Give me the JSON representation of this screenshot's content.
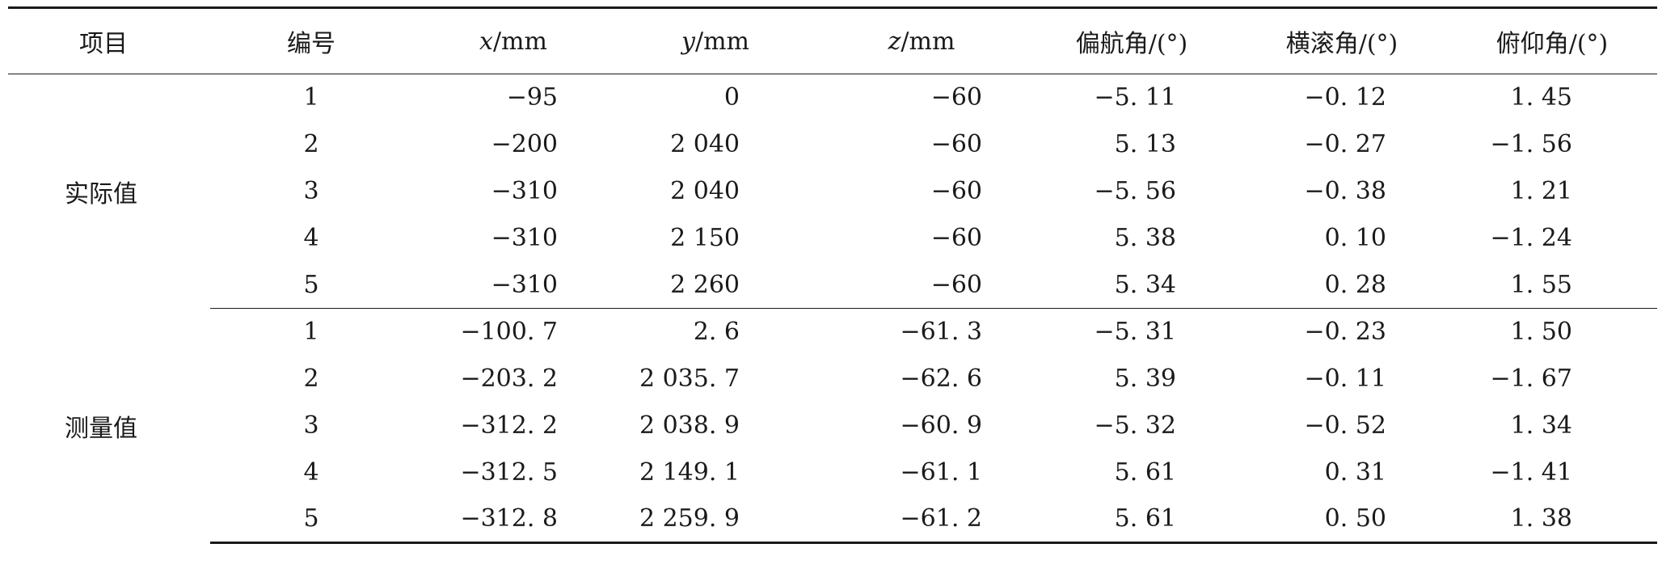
{
  "headers": {
    "item": "项目",
    "id": "编号",
    "x_var": "x",
    "x_unit": "/mm",
    "y_var": "y",
    "y_unit": "/mm",
    "z_var": "z",
    "z_unit": "/mm",
    "yaw": "偏航角/(°)",
    "roll": "横滚角/(°)",
    "pitch": "俯仰角/(°)"
  },
  "groups": [
    {
      "label": "实际值",
      "rows": [
        {
          "id": "1",
          "x": "−95",
          "y": "0",
          "z": "−60",
          "yaw": "−5. 11",
          "roll": "−0. 12",
          "pitch": "1. 45"
        },
        {
          "id": "2",
          "x": "−200",
          "y": "2 040",
          "z": "−60",
          "yaw": "5. 13",
          "roll": "−0. 27",
          "pitch": "−1. 56"
        },
        {
          "id": "3",
          "x": "−310",
          "y": "2 040",
          "z": "−60",
          "yaw": "−5. 56",
          "roll": "−0. 38",
          "pitch": "1. 21"
        },
        {
          "id": "4",
          "x": "−310",
          "y": "2 150",
          "z": "−60",
          "yaw": "5. 38",
          "roll": "0. 10",
          "pitch": "−1. 24"
        },
        {
          "id": "5",
          "x": "−310",
          "y": "2 260",
          "z": "−60",
          "yaw": "5. 34",
          "roll": "0. 28",
          "pitch": "1. 55"
        }
      ]
    },
    {
      "label": "测量值",
      "rows": [
        {
          "id": "1",
          "x": "−100. 7",
          "y": "2. 6",
          "z": "−61. 3",
          "yaw": "−5. 31",
          "roll": "−0. 23",
          "pitch": "1. 50"
        },
        {
          "id": "2",
          "x": "−203. 2",
          "y": "2 035. 7",
          "z": "−62. 6",
          "yaw": "5. 39",
          "roll": "−0. 11",
          "pitch": "−1. 67"
        },
        {
          "id": "3",
          "x": "−312. 2",
          "y": "2 038. 9",
          "z": "−60. 9",
          "yaw": "−5. 32",
          "roll": "−0. 52",
          "pitch": "1. 34"
        },
        {
          "id": "4",
          "x": "−312. 5",
          "y": "2 149. 1",
          "z": "−61. 1",
          "yaw": "5. 61",
          "roll": "0. 31",
          "pitch": "−1. 41"
        },
        {
          "id": "5",
          "x": "−312. 8",
          "y": "2 259. 9",
          "z": "−61. 2",
          "yaw": "5. 61",
          "roll": "0. 50",
          "pitch": "1. 38"
        }
      ]
    }
  ]
}
